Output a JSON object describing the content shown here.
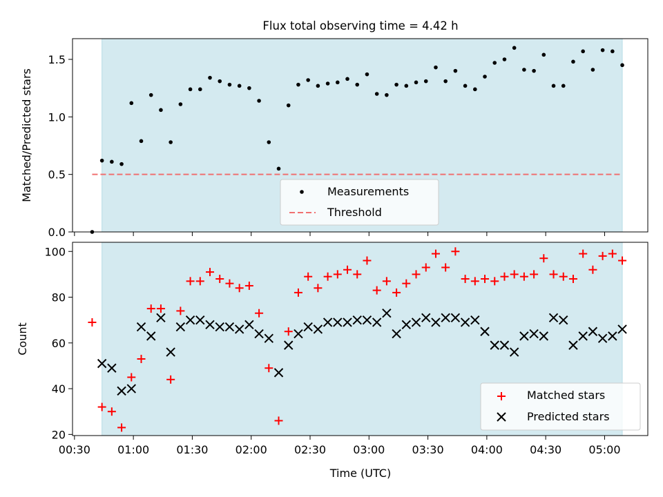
{
  "chart_data": [
    {
      "type": "scatter",
      "title": "Flux total observing time = 4.42 h",
      "xlabel": "",
      "ylabel": "Matched/Predicted stars",
      "ylim": [
        0,
        1.68
      ],
      "yticks": [
        0.0,
        0.5,
        1.0,
        1.5
      ],
      "ytick_labels": [
        "0.0",
        "0.5",
        "1.0",
        "1.5"
      ],
      "shaded_interval": {
        "start": "00:44",
        "end": "05:09",
        "color": "#d4eaf0"
      },
      "threshold": {
        "name": "Threshold",
        "value": 0.5,
        "start": "00:39",
        "end": "05:09",
        "color": "#f07070"
      },
      "legend_position": "lower-center",
      "series": [
        {
          "name": "Measurements",
          "color": "#000000",
          "x": [
            "00:39",
            "00:44",
            "00:49",
            "00:54",
            "00:59",
            "01:04",
            "01:09",
            "01:14",
            "01:19",
            "01:24",
            "01:29",
            "01:34",
            "01:39",
            "01:44",
            "01:49",
            "01:54",
            "01:59",
            "02:04",
            "02:09",
            "02:14",
            "02:19",
            "02:24",
            "02:29",
            "02:34",
            "02:39",
            "02:44",
            "02:49",
            "02:54",
            "02:59",
            "03:04",
            "03:09",
            "03:14",
            "03:19",
            "03:24",
            "03:29",
            "03:34",
            "03:39",
            "03:44",
            "03:49",
            "03:54",
            "03:59",
            "04:04",
            "04:09",
            "04:14",
            "04:19",
            "04:24",
            "04:29",
            "04:34",
            "04:39",
            "04:44",
            "04:49",
            "04:54",
            "04:59",
            "05:04",
            "05:09"
          ],
          "y": [
            0.0,
            0.62,
            0.61,
            0.59,
            1.12,
            0.79,
            1.19,
            1.06,
            0.78,
            1.11,
            1.24,
            1.24,
            1.34,
            1.31,
            1.28,
            1.27,
            1.25,
            1.14,
            0.78,
            0.55,
            1.1,
            1.28,
            1.32,
            1.27,
            1.29,
            1.3,
            1.33,
            1.28,
            1.37,
            1.2,
            1.19,
            1.28,
            1.27,
            1.3,
            1.31,
            1.43,
            1.31,
            1.4,
            1.27,
            1.24,
            1.35,
            1.47,
            1.5,
            1.6,
            1.41,
            1.4,
            1.54,
            1.27,
            1.27,
            1.48,
            1.57,
            1.41,
            1.58,
            1.57,
            1.45
          ]
        }
      ]
    },
    {
      "type": "scatter",
      "title": "",
      "xlabel": "Time (UTC)",
      "ylabel": "Count",
      "ylim": [
        19.5,
        104
      ],
      "yticks": [
        20,
        40,
        60,
        80,
        100
      ],
      "ytick_labels": [
        "20",
        "40",
        "60",
        "80",
        "100"
      ],
      "xlim": [
        "00:29",
        "05:22"
      ],
      "xticks": [
        "00:30",
        "01:00",
        "01:30",
        "02:00",
        "02:30",
        "03:00",
        "03:30",
        "04:00",
        "04:30",
        "05:00"
      ],
      "xtick_labels": [
        "00:30",
        "01:00",
        "01:30",
        "02:00",
        "02:30",
        "03:00",
        "03:30",
        "04:00",
        "04:30",
        "05:00"
      ],
      "shaded_interval": {
        "start": "00:44",
        "end": "05:09",
        "color": "#d4eaf0"
      },
      "legend_position": "lower-right",
      "series": [
        {
          "name": "Matched stars",
          "marker": "plus",
          "color": "#ff0000",
          "x": [
            "00:39",
            "00:44",
            "00:49",
            "00:54",
            "00:59",
            "01:04",
            "01:09",
            "01:14",
            "01:19",
            "01:24",
            "01:29",
            "01:34",
            "01:39",
            "01:44",
            "01:49",
            "01:54",
            "01:59",
            "02:04",
            "02:09",
            "02:14",
            "02:19",
            "02:24",
            "02:29",
            "02:34",
            "02:39",
            "02:44",
            "02:49",
            "02:54",
            "02:59",
            "03:04",
            "03:09",
            "03:14",
            "03:19",
            "03:24",
            "03:29",
            "03:34",
            "03:39",
            "03:44",
            "03:49",
            "03:54",
            "03:59",
            "04:04",
            "04:09",
            "04:14",
            "04:19",
            "04:24",
            "04:29",
            "04:34",
            "04:39",
            "04:44",
            "04:49",
            "04:54",
            "04:59",
            "05:04",
            "05:09"
          ],
          "y": [
            69,
            32,
            30,
            23,
            45,
            53,
            75,
            75,
            44,
            74,
            87,
            87,
            91,
            88,
            86,
            84,
            85,
            73,
            49,
            26,
            65,
            82,
            89,
            84,
            89,
            90,
            92,
            90,
            96,
            83,
            87,
            82,
            86,
            90,
            93,
            99,
            93,
            100,
            88,
            87,
            88,
            87,
            89,
            90,
            89,
            90,
            97,
            90,
            89,
            88,
            99,
            92,
            98,
            99,
            96
          ]
        },
        {
          "name": "Predicted stars",
          "marker": "x",
          "color": "#000000",
          "x": [
            "00:44",
            "00:49",
            "00:54",
            "00:59",
            "01:04",
            "01:09",
            "01:14",
            "01:19",
            "01:24",
            "01:29",
            "01:34",
            "01:39",
            "01:44",
            "01:49",
            "01:54",
            "01:59",
            "02:04",
            "02:09",
            "02:14",
            "02:19",
            "02:24",
            "02:29",
            "02:34",
            "02:39",
            "02:44",
            "02:49",
            "02:54",
            "02:59",
            "03:04",
            "03:09",
            "03:14",
            "03:19",
            "03:24",
            "03:29",
            "03:34",
            "03:39",
            "03:44",
            "03:49",
            "03:54",
            "03:59",
            "04:04",
            "04:09",
            "04:14",
            "04:19",
            "04:24",
            "04:29",
            "04:34",
            "04:39",
            "04:44",
            "04:49",
            "04:54",
            "04:59",
            "05:04",
            "05:09"
          ],
          "y": [
            51,
            49,
            39,
            40,
            67,
            63,
            71,
            56,
            67,
            70,
            70,
            68,
            67,
            67,
            66,
            68,
            64,
            62,
            47,
            59,
            64,
            67,
            66,
            69,
            69,
            69,
            70,
            70,
            69,
            73,
            64,
            68,
            69,
            71,
            69,
            71,
            71,
            69,
            70,
            65,
            59,
            59,
            56,
            63,
            64,
            63,
            71,
            70,
            59,
            63,
            65,
            62,
            63,
            66
          ]
        }
      ]
    }
  ]
}
